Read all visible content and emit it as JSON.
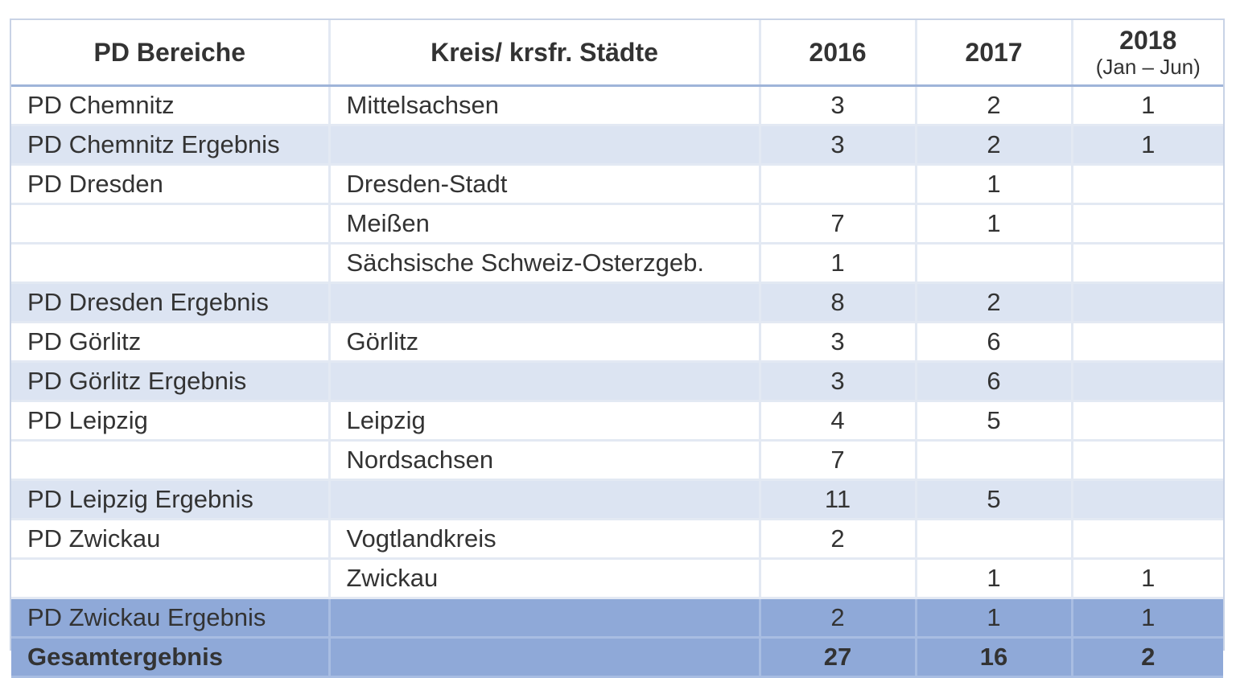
{
  "table": {
    "headers": {
      "col1": "PD Bereiche",
      "col2": "Kreis/ krsfr. Städte",
      "col3": "2016",
      "col4": "2017",
      "col5_main": "2018",
      "col5_sub": "(Jan – Jun)"
    },
    "rows": [
      {
        "pd": "PD Chemnitz",
        "kreis": "Mittelsachsen",
        "y2016": "3",
        "y2017": "2",
        "y2018": "1",
        "type": "data"
      },
      {
        "pd": "PD Chemnitz Ergebnis",
        "kreis": "",
        "y2016": "3",
        "y2017": "2",
        "y2018": "1",
        "type": "subtotal"
      },
      {
        "pd": "PD Dresden",
        "kreis": "Dresden-Stadt",
        "y2016": "",
        "y2017": "1",
        "y2018": "",
        "type": "data"
      },
      {
        "pd": "",
        "kreis": "Meißen",
        "y2016": "7",
        "y2017": "1",
        "y2018": "",
        "type": "data"
      },
      {
        "pd": "",
        "kreis": "Sächsische Schweiz-Osterzgeb.",
        "y2016": "1",
        "y2017": "",
        "y2018": "",
        "type": "data"
      },
      {
        "pd": "PD Dresden Ergebnis",
        "kreis": "",
        "y2016": "8",
        "y2017": "2",
        "y2018": "",
        "type": "subtotal"
      },
      {
        "pd": "PD Görlitz",
        "kreis": "Görlitz",
        "y2016": "3",
        "y2017": "6",
        "y2018": "",
        "type": "data"
      },
      {
        "pd": "PD Görlitz Ergebnis",
        "kreis": "",
        "y2016": "3",
        "y2017": "6",
        "y2018": "",
        "type": "subtotal"
      },
      {
        "pd": "PD Leipzig",
        "kreis": "Leipzig",
        "y2016": "4",
        "y2017": "5",
        "y2018": "",
        "type": "data"
      },
      {
        "pd": "",
        "kreis": "Nordsachsen",
        "y2016": "7",
        "y2017": "",
        "y2018": "",
        "type": "data"
      },
      {
        "pd": "PD Leipzig Ergebnis",
        "kreis": "",
        "y2016": "11",
        "y2017": "5",
        "y2018": "",
        "type": "subtotal"
      },
      {
        "pd": "PD Zwickau",
        "kreis": "Vogtlandkreis",
        "y2016": "2",
        "y2017": "",
        "y2018": "",
        "type": "data"
      },
      {
        "pd": "",
        "kreis": "Zwickau",
        "y2016": "",
        "y2017": "1",
        "y2018": "1",
        "type": "data"
      },
      {
        "pd": "PD Zwickau Ergebnis",
        "kreis": "",
        "y2016": "2",
        "y2017": "1",
        "y2018": "1",
        "type": "last-subtotal"
      },
      {
        "pd": "Gesamtergebnis",
        "kreis": "",
        "y2016": "27",
        "y2017": "16",
        "y2018": "2",
        "type": "total"
      }
    ]
  }
}
